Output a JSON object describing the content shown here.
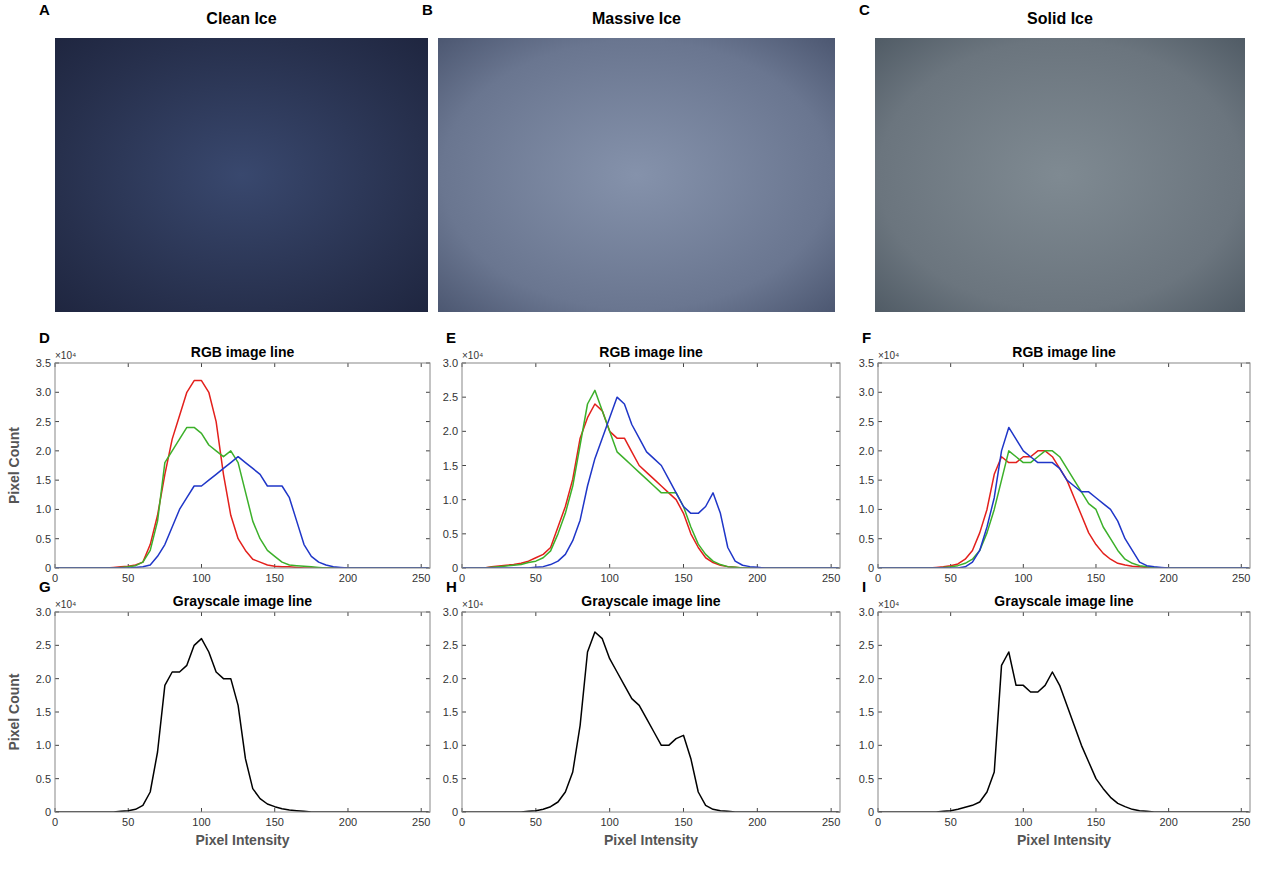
{
  "images": [
    {
      "letter": "A",
      "title": "Clean Ice"
    },
    {
      "letter": "B",
      "title": "Massive Ice"
    },
    {
      "letter": "C",
      "title": "Solid Ice"
    }
  ],
  "chart_data": [
    {
      "type": "line",
      "letter": "D",
      "title": "RGB image line",
      "ylabel": "Pixel Count",
      "y_multiplier": "×10⁴",
      "x": [
        0,
        5,
        10,
        15,
        20,
        25,
        30,
        35,
        40,
        45,
        50,
        55,
        60,
        65,
        70,
        75,
        80,
        85,
        90,
        95,
        100,
        105,
        110,
        115,
        120,
        125,
        130,
        135,
        140,
        145,
        150,
        155,
        160,
        165,
        170,
        175,
        180,
        185,
        190,
        195,
        200,
        205,
        210,
        215,
        220,
        225,
        230,
        235,
        240,
        245,
        250,
        255
      ],
      "xlim": [
        0,
        256
      ],
      "xticks": [
        0,
        50,
        100,
        150,
        200,
        250
      ],
      "ylim": [
        0,
        3.5
      ],
      "yticks": [
        0,
        0.5,
        {
          "value": 1,
          "label": "1.0"
        },
        1.5,
        {
          "value": 2,
          "label": "2.0"
        },
        2.5,
        {
          "value": 3,
          "label": "3.0"
        },
        3.5
      ],
      "series": [
        {
          "color": "#e3201c",
          "values": [
            0,
            0,
            0,
            0,
            0,
            0,
            0,
            0,
            0.01,
            0.02,
            0.03,
            0.05,
            0.1,
            0.4,
            0.9,
            1.6,
            2.2,
            2.6,
            3.0,
            3.2,
            3.2,
            3.0,
            2.5,
            1.6,
            0.9,
            0.5,
            0.3,
            0.15,
            0.1,
            0.05,
            0.03,
            0.02,
            0.02,
            0.01,
            0,
            0,
            0,
            0,
            0,
            0,
            0,
            0,
            0,
            0,
            0,
            0,
            0,
            0,
            0,
            0,
            0,
            0
          ]
        },
        {
          "color": "#3cb02a",
          "values": [
            0,
            0,
            0,
            0,
            0,
            0,
            0,
            0,
            0,
            0.01,
            0.02,
            0.04,
            0.1,
            0.3,
            0.8,
            1.8,
            2.0,
            2.2,
            2.4,
            2.4,
            2.3,
            2.1,
            2.0,
            1.9,
            2.0,
            1.8,
            1.3,
            0.8,
            0.5,
            0.3,
            0.2,
            0.1,
            0.05,
            0.04,
            0.03,
            0.02,
            0.01,
            0,
            0,
            0,
            0,
            0,
            0,
            0,
            0,
            0,
            0,
            0,
            0,
            0,
            0,
            0
          ]
        },
        {
          "color": "#1f36c8",
          "values": [
            0,
            0,
            0,
            0,
            0,
            0,
            0,
            0,
            0,
            0,
            0,
            0.01,
            0.02,
            0.05,
            0.2,
            0.4,
            0.7,
            1.0,
            1.2,
            1.4,
            1.4,
            1.5,
            1.6,
            1.7,
            1.8,
            1.9,
            1.8,
            1.7,
            1.6,
            1.4,
            1.4,
            1.4,
            1.2,
            0.8,
            0.4,
            0.2,
            0.1,
            0.05,
            0.02,
            0.01,
            0,
            0,
            0,
            0,
            0,
            0,
            0,
            0,
            0,
            0,
            0,
            0
          ]
        }
      ]
    },
    {
      "type": "line",
      "letter": "E",
      "title": "RGB image line",
      "y_multiplier": "×10⁴",
      "x": [
        0,
        5,
        10,
        15,
        20,
        25,
        30,
        35,
        40,
        45,
        50,
        55,
        60,
        65,
        70,
        75,
        80,
        85,
        90,
        95,
        100,
        105,
        110,
        115,
        120,
        125,
        130,
        135,
        140,
        145,
        150,
        155,
        160,
        165,
        170,
        175,
        180,
        185,
        190,
        195,
        200,
        205,
        210,
        215,
        220,
        225,
        230,
        235,
        240,
        245,
        250,
        255
      ],
      "xlim": [
        0,
        256
      ],
      "xticks": [
        0,
        50,
        100,
        150,
        200,
        250
      ],
      "ylim": [
        0,
        3
      ],
      "yticks": [
        0,
        0.5,
        {
          "value": 1,
          "label": "1.0"
        },
        1.5,
        {
          "value": 2,
          "label": "2.0"
        },
        2.5,
        {
          "value": 3,
          "label": "3.0"
        }
      ],
      "series": [
        {
          "color": "#e3201c",
          "values": [
            0,
            0,
            0,
            0,
            0.02,
            0.03,
            0.04,
            0.05,
            0.07,
            0.1,
            0.15,
            0.2,
            0.3,
            0.6,
            0.9,
            1.3,
            1.9,
            2.2,
            2.4,
            2.3,
            2.0,
            1.9,
            1.9,
            1.7,
            1.5,
            1.4,
            1.3,
            1.2,
            1.1,
            1.0,
            0.8,
            0.5,
            0.3,
            0.15,
            0.08,
            0.04,
            0.02,
            0.01,
            0,
            0,
            0,
            0,
            0,
            0,
            0,
            0,
            0,
            0,
            0,
            0,
            0,
            0
          ]
        },
        {
          "color": "#3cb02a",
          "values": [
            0,
            0,
            0,
            0,
            0.01,
            0.02,
            0.03,
            0.04,
            0.05,
            0.08,
            0.1,
            0.15,
            0.25,
            0.5,
            0.8,
            1.2,
            1.8,
            2.4,
            2.6,
            2.3,
            2.0,
            1.7,
            1.6,
            1.5,
            1.4,
            1.3,
            1.2,
            1.1,
            1.1,
            1.1,
            0.9,
            0.6,
            0.35,
            0.2,
            0.1,
            0.05,
            0.02,
            0.01,
            0,
            0,
            0,
            0,
            0,
            0,
            0,
            0,
            0,
            0,
            0,
            0,
            0,
            0
          ]
        },
        {
          "color": "#1f36c8",
          "values": [
            0,
            0,
            0,
            0,
            0,
            0,
            0,
            0,
            0,
            0,
            0.01,
            0.02,
            0.05,
            0.1,
            0.2,
            0.4,
            0.7,
            1.2,
            1.6,
            1.9,
            2.2,
            2.5,
            2.4,
            2.1,
            1.9,
            1.7,
            1.6,
            1.5,
            1.3,
            1.1,
            0.9,
            0.8,
            0.8,
            0.9,
            1.1,
            0.8,
            0.3,
            0.1,
            0.04,
            0.02,
            0.01,
            0,
            0,
            0,
            0,
            0,
            0,
            0,
            0,
            0,
            0,
            0
          ]
        }
      ]
    },
    {
      "type": "line",
      "letter": "F",
      "title": "RGB image line",
      "y_multiplier": "×10⁴",
      "x": [
        0,
        5,
        10,
        15,
        20,
        25,
        30,
        35,
        40,
        45,
        50,
        55,
        60,
        65,
        70,
        75,
        80,
        85,
        90,
        95,
        100,
        105,
        110,
        115,
        120,
        125,
        130,
        135,
        140,
        145,
        150,
        155,
        160,
        165,
        170,
        175,
        180,
        185,
        190,
        195,
        200,
        205,
        210,
        215,
        220,
        225,
        230,
        235,
        240,
        245,
        250,
        255
      ],
      "xlim": [
        0,
        256
      ],
      "xticks": [
        0,
        50,
        100,
        150,
        200,
        250
      ],
      "ylim": [
        0,
        3.5
      ],
      "yticks": [
        0,
        0.5,
        {
          "value": 1,
          "label": "1.0"
        },
        1.5,
        {
          "value": 2,
          "label": "2.0"
        },
        2.5,
        {
          "value": 3,
          "label": "3.0"
        },
        3.5
      ],
      "series": [
        {
          "color": "#e3201c",
          "values": [
            0,
            0,
            0,
            0,
            0,
            0,
            0,
            0,
            0.01,
            0.02,
            0.04,
            0.07,
            0.15,
            0.3,
            0.6,
            1.0,
            1.6,
            1.9,
            1.8,
            1.8,
            1.9,
            1.9,
            2.0,
            2.0,
            1.9,
            1.7,
            1.5,
            1.2,
            0.9,
            0.6,
            0.4,
            0.25,
            0.15,
            0.08,
            0.05,
            0.03,
            0.02,
            0.01,
            0,
            0,
            0,
            0,
            0,
            0,
            0,
            0,
            0,
            0,
            0,
            0,
            0,
            0
          ]
        },
        {
          "color": "#3cb02a",
          "values": [
            0,
            0,
            0,
            0,
            0,
            0,
            0,
            0,
            0,
            0.01,
            0.02,
            0.04,
            0.08,
            0.15,
            0.3,
            0.6,
            1.0,
            1.5,
            2.0,
            1.9,
            1.8,
            1.8,
            1.9,
            2.0,
            2.0,
            1.9,
            1.7,
            1.5,
            1.3,
            1.1,
            1.0,
            0.7,
            0.5,
            0.3,
            0.15,
            0.08,
            0.04,
            0.02,
            0.01,
            0,
            0,
            0,
            0,
            0,
            0,
            0,
            0,
            0,
            0,
            0,
            0,
            0
          ]
        },
        {
          "color": "#1f36c8",
          "values": [
            0,
            0,
            0,
            0,
            0,
            0,
            0,
            0,
            0,
            0,
            0,
            0,
            0.02,
            0.1,
            0.3,
            0.7,
            1.2,
            2.0,
            2.4,
            2.2,
            2.0,
            1.9,
            1.8,
            1.8,
            1.8,
            1.7,
            1.5,
            1.4,
            1.3,
            1.3,
            1.2,
            1.1,
            1.0,
            0.8,
            0.5,
            0.3,
            0.1,
            0.04,
            0.02,
            0.01,
            0,
            0,
            0,
            0,
            0,
            0,
            0,
            0,
            0,
            0,
            0,
            0
          ]
        }
      ]
    },
    {
      "type": "line",
      "letter": "G",
      "title": "Grayscale image line",
      "ylabel": "Pixel Count",
      "xlabel": "Pixel Intensity",
      "y_multiplier": "×10⁴",
      "x": [
        0,
        5,
        10,
        15,
        20,
        25,
        30,
        35,
        40,
        45,
        50,
        55,
        60,
        65,
        70,
        75,
        80,
        85,
        90,
        95,
        100,
        105,
        110,
        115,
        120,
        125,
        130,
        135,
        140,
        145,
        150,
        155,
        160,
        165,
        170,
        175,
        180,
        185,
        190,
        195,
        200,
        205,
        210,
        215,
        220,
        225,
        230,
        235,
        240,
        245,
        250,
        255
      ],
      "xlim": [
        0,
        256
      ],
      "xticks": [
        0,
        50,
        100,
        150,
        200,
        250
      ],
      "ylim": [
        0,
        3
      ],
      "yticks": [
        0,
        0.5,
        {
          "value": 1,
          "label": "1.0"
        },
        1.5,
        {
          "value": 2,
          "label": "2.0"
        },
        2.5,
        {
          "value": 3,
          "label": "3.0"
        }
      ],
      "series": [
        {
          "color": "#000000",
          "values": [
            0,
            0,
            0,
            0,
            0,
            0,
            0,
            0,
            0,
            0.01,
            0.02,
            0.04,
            0.1,
            0.3,
            0.9,
            1.9,
            2.1,
            2.1,
            2.2,
            2.5,
            2.6,
            2.4,
            2.1,
            2.0,
            2.0,
            1.6,
            0.8,
            0.35,
            0.2,
            0.12,
            0.08,
            0.05,
            0.03,
            0.02,
            0.01,
            0,
            0,
            0,
            0,
            0,
            0,
            0,
            0,
            0,
            0,
            0,
            0,
            0,
            0,
            0,
            0,
            0
          ]
        }
      ]
    },
    {
      "type": "line",
      "letter": "H",
      "title": "Grayscale image line",
      "xlabel": "Pixel Intensity",
      "y_multiplier": "×10⁴",
      "x": [
        0,
        5,
        10,
        15,
        20,
        25,
        30,
        35,
        40,
        45,
        50,
        55,
        60,
        65,
        70,
        75,
        80,
        85,
        90,
        95,
        100,
        105,
        110,
        115,
        120,
        125,
        130,
        135,
        140,
        145,
        150,
        155,
        160,
        165,
        170,
        175,
        180,
        185,
        190,
        195,
        200,
        205,
        210,
        215,
        220,
        225,
        230,
        235,
        240,
        245,
        250,
        255
      ],
      "xlim": [
        0,
        256
      ],
      "xticks": [
        0,
        50,
        100,
        150,
        200,
        250
      ],
      "ylim": [
        0,
        3
      ],
      "yticks": [
        0,
        0.5,
        {
          "value": 1,
          "label": "1.0"
        },
        1.5,
        {
          "value": 2,
          "label": "2.0"
        },
        2.5,
        {
          "value": 3,
          "label": "3.0"
        }
      ],
      "series": [
        {
          "color": "#000000",
          "values": [
            0,
            0,
            0,
            0,
            0,
            0,
            0,
            0,
            0,
            0.01,
            0.02,
            0.04,
            0.08,
            0.15,
            0.3,
            0.6,
            1.3,
            2.4,
            2.7,
            2.6,
            2.3,
            2.1,
            1.9,
            1.7,
            1.6,
            1.4,
            1.2,
            1.0,
            1.0,
            1.1,
            1.15,
            0.8,
            0.3,
            0.1,
            0.04,
            0.02,
            0.01,
            0,
            0,
            0,
            0,
            0,
            0,
            0,
            0,
            0,
            0,
            0,
            0,
            0,
            0,
            0
          ]
        }
      ]
    },
    {
      "type": "line",
      "letter": "I",
      "title": "Grayscale image line",
      "xlabel": "Pixel Intensity",
      "y_multiplier": "×10⁴",
      "x": [
        0,
        5,
        10,
        15,
        20,
        25,
        30,
        35,
        40,
        45,
        50,
        55,
        60,
        65,
        70,
        75,
        80,
        85,
        90,
        95,
        100,
        105,
        110,
        115,
        120,
        125,
        130,
        135,
        140,
        145,
        150,
        155,
        160,
        165,
        170,
        175,
        180,
        185,
        190,
        195,
        200,
        205,
        210,
        215,
        220,
        225,
        230,
        235,
        240,
        245,
        250,
        255
      ],
      "xlim": [
        0,
        256
      ],
      "xticks": [
        0,
        50,
        100,
        150,
        200,
        250
      ],
      "ylim": [
        0,
        3
      ],
      "yticks": [
        0,
        0.5,
        {
          "value": 1,
          "label": "1.0"
        },
        1.5,
        {
          "value": 2,
          "label": "2.0"
        },
        2.5,
        {
          "value": 3,
          "label": "3.0"
        }
      ],
      "series": [
        {
          "color": "#000000",
          "values": [
            0,
            0,
            0,
            0,
            0,
            0,
            0,
            0,
            0,
            0.01,
            0.02,
            0.04,
            0.07,
            0.1,
            0.15,
            0.3,
            0.6,
            2.2,
            2.4,
            1.9,
            1.9,
            1.8,
            1.8,
            1.9,
            2.1,
            1.9,
            1.6,
            1.3,
            1.0,
            0.75,
            0.5,
            0.35,
            0.22,
            0.13,
            0.08,
            0.04,
            0.02,
            0.01,
            0,
            0,
            0,
            0,
            0,
            0,
            0,
            0,
            0,
            0,
            0,
            0,
            0,
            0
          ]
        }
      ]
    }
  ]
}
